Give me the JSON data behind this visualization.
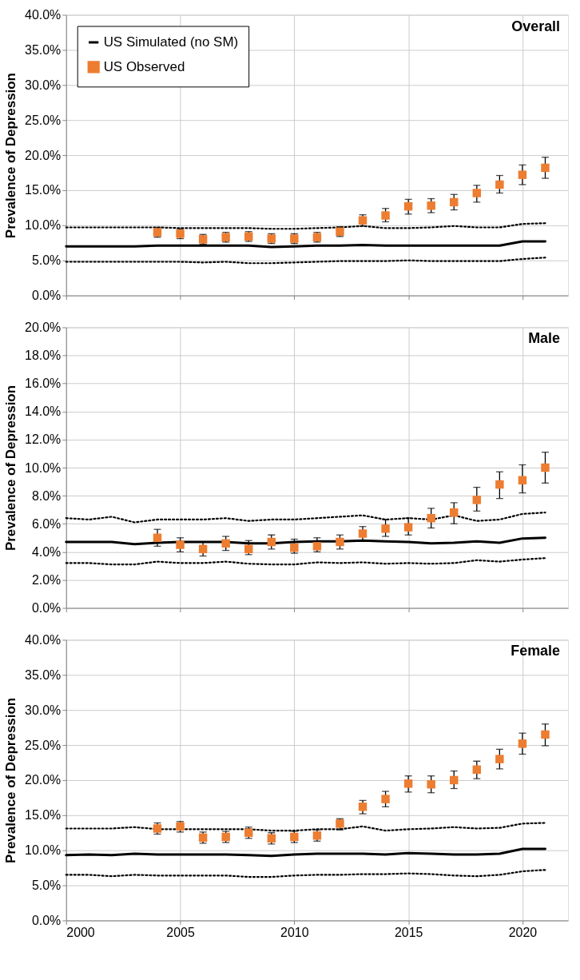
{
  "chart_data": [
    {
      "type": "line",
      "title": "Overall",
      "ylabel": "Prevalence of Depression",
      "xlim": [
        2000,
        2022
      ],
      "xticks": [
        2000,
        2005,
        2010,
        2015,
        2020
      ],
      "ylim": [
        0,
        40
      ],
      "yticks": [
        {
          "value": 0,
          "label": "0.0%"
        },
        {
          "value": 5,
          "label": "5.0%"
        },
        {
          "value": 10,
          "label": "10.0%"
        },
        {
          "value": 15,
          "label": "15.0%"
        },
        {
          "value": 20,
          "label": "20.0%"
        },
        {
          "value": 25,
          "label": "25.0%"
        },
        {
          "value": 30,
          "label": "30.0%"
        },
        {
          "value": 35,
          "label": "35.0%"
        },
        {
          "value": 40,
          "label": "40.0%"
        }
      ],
      "grid": true,
      "legend": "top left",
      "tick_labels": "y",
      "series": [
        {
          "name": "US Simulated (no SM)",
          "color": "#000000",
          "line_style": "solid",
          "x": [
            2000,
            2001,
            2002,
            2003,
            2004,
            2005,
            2006,
            2007,
            2008,
            2009,
            2010,
            2011,
            2012,
            2013,
            2014,
            2015,
            2016,
            2017,
            2018,
            2019,
            2020,
            2021
          ],
          "values": [
            7.0,
            7.0,
            7.0,
            7.0,
            7.1,
            7.1,
            7.1,
            7.1,
            7.1,
            6.9,
            7.0,
            7.1,
            7.1,
            7.2,
            7.1,
            7.1,
            7.1,
            7.1,
            7.1,
            7.1,
            7.7,
            7.7
          ]
        },
        {
          "color": "#000000",
          "line_style": "dotted",
          "x": [
            2000,
            2001,
            2002,
            2003,
            2004,
            2005,
            2006,
            2007,
            2008,
            2009,
            2010,
            2011,
            2012,
            2013,
            2014,
            2015,
            2016,
            2017,
            2018,
            2019,
            2020,
            2021
          ],
          "values": [
            9.7,
            9.7,
            9.7,
            9.7,
            9.7,
            9.6,
            9.6,
            9.6,
            9.6,
            9.5,
            9.5,
            9.6,
            9.7,
            9.9,
            9.6,
            9.6,
            9.7,
            9.9,
            9.7,
            9.7,
            10.2,
            10.3
          ]
        },
        {
          "color": "#000000",
          "line_style": "dotted",
          "x": [
            2000,
            2001,
            2002,
            2003,
            2004,
            2005,
            2006,
            2007,
            2008,
            2009,
            2010,
            2011,
            2012,
            2013,
            2014,
            2015,
            2016,
            2017,
            2018,
            2019,
            2020,
            2021
          ],
          "values": [
            4.8,
            4.8,
            4.8,
            4.8,
            4.8,
            4.8,
            4.7,
            4.8,
            4.6,
            4.6,
            4.7,
            4.8,
            4.9,
            4.9,
            4.9,
            5.0,
            4.9,
            4.9,
            4.9,
            4.9,
            5.2,
            5.4
          ]
        },
        {
          "name": "US Observed",
          "type": "scatter",
          "color": "#ed7d31",
          "marker": "square",
          "x": [
            2004,
            2005,
            2006,
            2007,
            2008,
            2009,
            2010,
            2011,
            2012,
            2013,
            2014,
            2015,
            2016,
            2017,
            2018,
            2019,
            2020,
            2021
          ],
          "values": [
            9.0,
            8.8,
            8.0,
            8.3,
            8.4,
            8.1,
            8.1,
            8.3,
            9.1,
            10.7,
            11.4,
            12.7,
            12.8,
            13.3,
            14.6,
            15.8,
            17.2,
            18.2
          ],
          "errors": [
            0.7,
            0.7,
            0.7,
            0.7,
            0.7,
            0.7,
            0.7,
            0.7,
            0.7,
            0.8,
            [
              10.5,
              12.4
            ],
            [
              11.6,
              13.7
            ],
            [
              11.8,
              13.8
            ],
            [
              12.2,
              14.4
            ],
            [
              13.3,
              15.7
            ],
            [
              14.6,
              17.1
            ],
            [
              15.8,
              18.6
            ],
            [
              16.7,
              19.7
            ]
          ]
        }
      ]
    },
    {
      "type": "line",
      "title": "Male",
      "ylabel": "Prevalence of Depression",
      "xlim": [
        2000,
        2022
      ],
      "xticks": [
        2000,
        2005,
        2010,
        2015,
        2020
      ],
      "ylim": [
        0,
        20
      ],
      "yticks": [
        {
          "value": 0,
          "label": "0.0%"
        },
        {
          "value": 2,
          "label": "2.0%"
        },
        {
          "value": 4,
          "label": "4.0%"
        },
        {
          "value": 6,
          "label": "6.0%"
        },
        {
          "value": 8,
          "label": "8.0%"
        },
        {
          "value": 10,
          "label": "10.0%"
        },
        {
          "value": 12,
          "label": "12.0%"
        },
        {
          "value": 14,
          "label": "14.0%"
        },
        {
          "value": 16,
          "label": "16.0%"
        },
        {
          "value": 18,
          "label": "18.0%"
        },
        {
          "value": 20,
          "label": "20.0%"
        }
      ],
      "grid": true,
      "tick_labels": "y",
      "series": [
        {
          "color": "#000000",
          "line_style": "solid",
          "x": [
            2000,
            2001,
            2002,
            2003,
            2004,
            2005,
            2006,
            2007,
            2008,
            2009,
            2010,
            2011,
            2012,
            2013,
            2014,
            2015,
            2016,
            2017,
            2018,
            2019,
            2020,
            2021
          ],
          "values": [
            4.7,
            4.7,
            4.7,
            4.55,
            4.65,
            4.7,
            4.7,
            4.7,
            4.6,
            4.6,
            4.7,
            4.75,
            4.75,
            4.8,
            4.75,
            4.7,
            4.6,
            4.65,
            4.75,
            4.65,
            4.95,
            5.0
          ]
        },
        {
          "color": "#000000",
          "line_style": "dotted",
          "x": [
            2000,
            2001,
            2002,
            2003,
            2004,
            2005,
            2006,
            2007,
            2008,
            2009,
            2010,
            2011,
            2012,
            2013,
            2014,
            2015,
            2016,
            2017,
            2018,
            2019,
            2020,
            2021
          ],
          "values": [
            6.4,
            6.3,
            6.5,
            6.1,
            6.3,
            6.3,
            6.3,
            6.4,
            6.2,
            6.3,
            6.3,
            6.4,
            6.5,
            6.6,
            6.3,
            6.4,
            6.3,
            6.6,
            6.2,
            6.3,
            6.7,
            6.8
          ]
        },
        {
          "color": "#000000",
          "line_style": "dotted",
          "x": [
            2000,
            2001,
            2002,
            2003,
            2004,
            2005,
            2006,
            2007,
            2008,
            2009,
            2010,
            2011,
            2012,
            2013,
            2014,
            2015,
            2016,
            2017,
            2018,
            2019,
            2020,
            2021
          ],
          "values": [
            3.2,
            3.2,
            3.1,
            3.1,
            3.3,
            3.2,
            3.2,
            3.3,
            3.15,
            3.1,
            3.1,
            3.25,
            3.2,
            3.25,
            3.15,
            3.2,
            3.15,
            3.2,
            3.4,
            3.3,
            3.45,
            3.55
          ]
        },
        {
          "type": "scatter",
          "color": "#ed7d31",
          "marker": "square",
          "x": [
            2004,
            2005,
            2006,
            2007,
            2008,
            2009,
            2010,
            2011,
            2012,
            2013,
            2014,
            2015,
            2016,
            2017,
            2018,
            2019,
            2020,
            2021
          ],
          "values": [
            5.0,
            4.5,
            4.2,
            4.6,
            4.2,
            4.7,
            4.3,
            4.4,
            4.7,
            5.3,
            5.65,
            5.75,
            6.4,
            6.8,
            7.7,
            8.8,
            9.1,
            10.0
          ],
          "errors": [
            [
              4.4,
              5.6
            ],
            [
              4.0,
              5.0
            ],
            [
              3.7,
              4.7
            ],
            [
              4.1,
              5.1
            ],
            [
              3.8,
              4.8
            ],
            [
              4.2,
              5.2
            ],
            [
              3.9,
              4.9
            ],
            [
              4.0,
              5.0
            ],
            [
              4.2,
              5.2
            ],
            [
              4.8,
              5.8
            ],
            [
              5.1,
              6.3
            ],
            [
              5.2,
              6.4
            ],
            [
              5.7,
              7.1
            ],
            [
              6.0,
              7.5
            ],
            [
              6.9,
              8.6
            ],
            [
              7.8,
              9.7
            ],
            [
              8.2,
              10.2
            ],
            [
              8.9,
              11.1
            ]
          ]
        }
      ]
    },
    {
      "type": "line",
      "title": "Female",
      "ylabel": "Prevalence of Depression",
      "xlim": [
        2000,
        2022
      ],
      "xticks": [
        2000,
        2005,
        2010,
        2015,
        2020
      ],
      "ylim": [
        0,
        40
      ],
      "yticks": [
        {
          "value": 0,
          "label": "0.0%"
        },
        {
          "value": 5,
          "label": "5.0%"
        },
        {
          "value": 10,
          "label": "10.0%"
        },
        {
          "value": 15,
          "label": "15.0%"
        },
        {
          "value": 20,
          "label": "20.0%"
        },
        {
          "value": 25,
          "label": "25.0%"
        },
        {
          "value": 30,
          "label": "30.0%"
        },
        {
          "value": 35,
          "label": "35.0%"
        },
        {
          "value": 40,
          "label": "40.0%"
        }
      ],
      "grid": true,
      "series": [
        {
          "color": "#000000",
          "line_style": "solid",
          "x": [
            2000,
            2001,
            2002,
            2003,
            2004,
            2005,
            2006,
            2007,
            2008,
            2009,
            2010,
            2011,
            2012,
            2013,
            2014,
            2015,
            2016,
            2017,
            2018,
            2019,
            2020,
            2021
          ],
          "values": [
            9.3,
            9.4,
            9.3,
            9.5,
            9.4,
            9.4,
            9.4,
            9.4,
            9.3,
            9.2,
            9.4,
            9.5,
            9.5,
            9.5,
            9.4,
            9.6,
            9.5,
            9.4,
            9.4,
            9.5,
            10.2,
            10.2
          ]
        },
        {
          "color": "#000000",
          "line_style": "dotted",
          "x": [
            2000,
            2001,
            2002,
            2003,
            2004,
            2005,
            2006,
            2007,
            2008,
            2009,
            2010,
            2011,
            2012,
            2013,
            2014,
            2015,
            2016,
            2017,
            2018,
            2019,
            2020,
            2021
          ],
          "values": [
            13.1,
            13.1,
            13.1,
            13.3,
            13.0,
            13.0,
            13.0,
            13.0,
            13.0,
            12.8,
            12.8,
            13.0,
            13.0,
            13.4,
            12.8,
            13.0,
            13.1,
            13.3,
            13.1,
            13.2,
            13.8,
            13.9
          ]
        },
        {
          "color": "#000000",
          "line_style": "dotted",
          "x": [
            2000,
            2001,
            2002,
            2003,
            2004,
            2005,
            2006,
            2007,
            2008,
            2009,
            2010,
            2011,
            2012,
            2013,
            2014,
            2015,
            2016,
            2017,
            2018,
            2019,
            2020,
            2021
          ],
          "values": [
            6.5,
            6.5,
            6.3,
            6.5,
            6.4,
            6.4,
            6.4,
            6.4,
            6.2,
            6.2,
            6.4,
            6.5,
            6.5,
            6.6,
            6.6,
            6.7,
            6.6,
            6.4,
            6.3,
            6.5,
            7.0,
            7.2
          ]
        },
        {
          "type": "scatter",
          "color": "#ed7d31",
          "marker": "square",
          "x": [
            2004,
            2005,
            2006,
            2007,
            2008,
            2009,
            2010,
            2011,
            2012,
            2013,
            2014,
            2015,
            2016,
            2017,
            2018,
            2019,
            2020,
            2021
          ],
          "values": [
            13.1,
            13.4,
            11.8,
            11.9,
            12.5,
            11.7,
            11.9,
            12.1,
            13.8,
            16.2,
            17.3,
            19.5,
            19.4,
            20.0,
            21.5,
            23.0,
            25.2,
            26.5
          ],
          "errors": [
            [
              12.3,
              13.9
            ],
            [
              12.6,
              14.1
            ],
            0.8,
            0.8,
            0.8,
            0.8,
            0.8,
            0.8,
            [
              12.9,
              14.5
            ],
            [
              15.2,
              17.1
            ],
            [
              16.2,
              18.4
            ],
            [
              18.3,
              20.6
            ],
            [
              18.2,
              20.6
            ],
            [
              18.8,
              21.3
            ],
            [
              20.2,
              22.7
            ],
            [
              21.6,
              24.4
            ],
            [
              23.7,
              26.7
            ],
            [
              24.9,
              28.0
            ]
          ]
        }
      ]
    }
  ]
}
